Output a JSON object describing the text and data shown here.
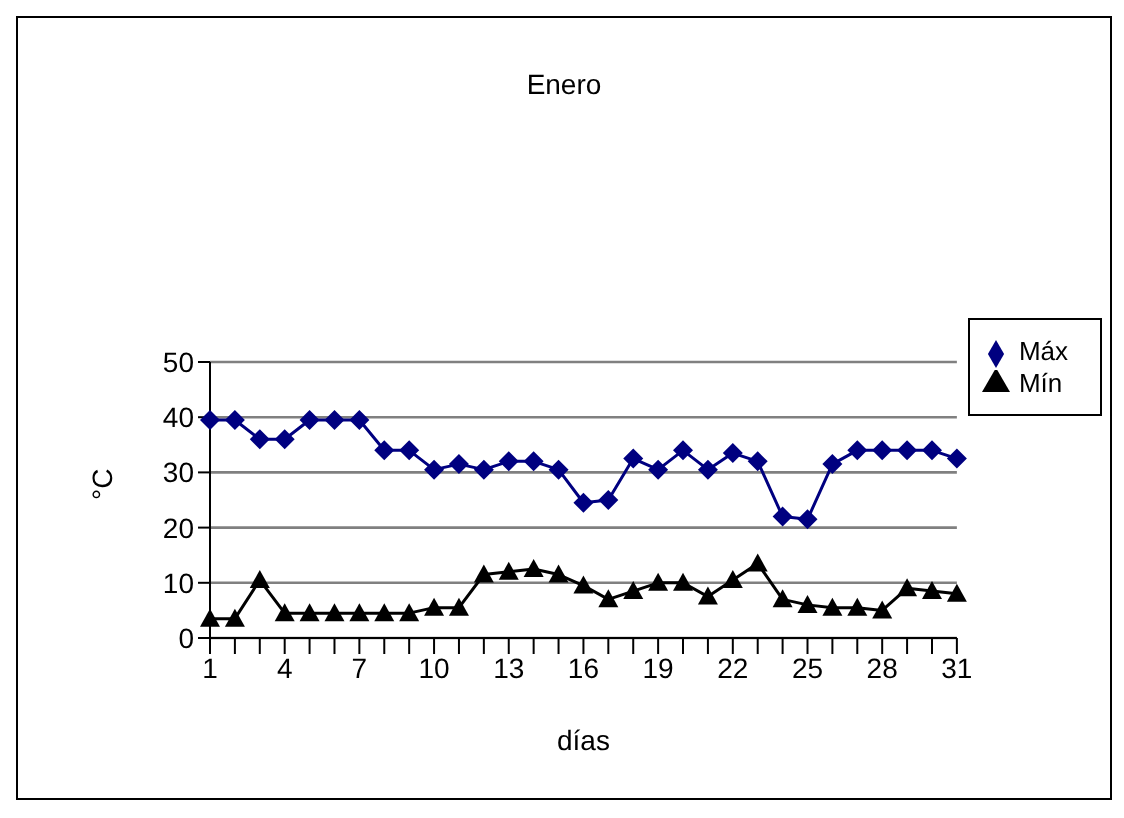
{
  "chart_data": {
    "type": "line",
    "title": "Enero",
    "xlabel": "días",
    "ylabel": "°C",
    "categories": [
      "1",
      null,
      null,
      "4",
      null,
      null,
      "7",
      null,
      null,
      "10",
      null,
      null,
      "13",
      null,
      null,
      "16",
      null,
      null,
      "19",
      null,
      null,
      "22",
      null,
      null,
      "25",
      null,
      null,
      "28",
      null,
      null,
      "31"
    ],
    "series": [
      {
        "name": "Máx",
        "color": "#000080",
        "marker": "diamond",
        "values": [
          39.5,
          39.5,
          36,
          36,
          39.5,
          39.5,
          39.5,
          34,
          34,
          30.5,
          31.5,
          30.5,
          32,
          32,
          30.5,
          24.5,
          25,
          32.5,
          30.5,
          34,
          30.5,
          33.5,
          32,
          22,
          21.5,
          31.5,
          34,
          34,
          34,
          34,
          32.5
        ]
      },
      {
        "name": "Mín",
        "color": "#000000",
        "marker": "triangle",
        "values": [
          3.5,
          3.5,
          10.5,
          4.5,
          4.5,
          4.5,
          4.5,
          4.5,
          4.5,
          5.5,
          5.5,
          11.5,
          12,
          12.5,
          11.5,
          9.5,
          7,
          8.5,
          10,
          10,
          7.5,
          10.5,
          13.5,
          7,
          6,
          5.5,
          5.5,
          5,
          9,
          8.5,
          8
        ]
      }
    ],
    "ylim": [
      0,
      50
    ],
    "yticks": [
      0,
      10,
      20,
      30,
      40,
      50
    ],
    "grid": "y",
    "legend": "right"
  }
}
